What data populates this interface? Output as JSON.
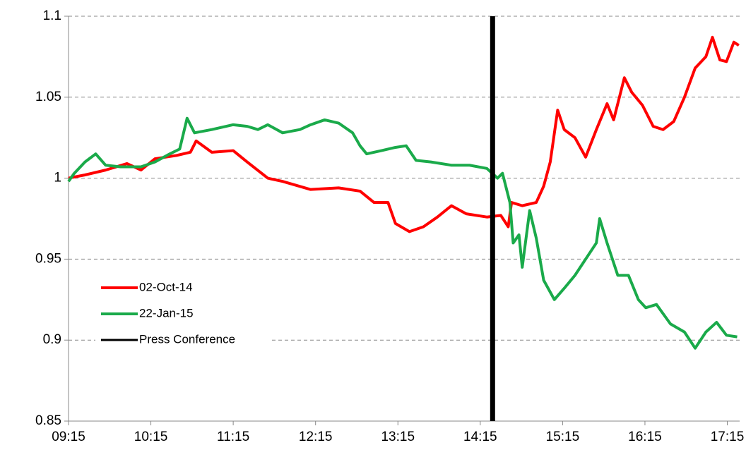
{
  "chart_data": {
    "type": "line",
    "xlim": [
      9.25,
      17.4
    ],
    "xticks": [
      {
        "value": 9.25,
        "label": "09:15"
      },
      {
        "value": 10.25,
        "label": "10:15"
      },
      {
        "value": 11.25,
        "label": "11:15"
      },
      {
        "value": 12.25,
        "label": "12:15"
      },
      {
        "value": 13.25,
        "label": "13:15"
      },
      {
        "value": 14.25,
        "label": "14:15"
      },
      {
        "value": 15.25,
        "label": "15:15"
      },
      {
        "value": 16.25,
        "label": "16:15"
      },
      {
        "value": 17.25,
        "label": "17:15"
      }
    ],
    "ylim": [
      0.85,
      1.1
    ],
    "yticks": [
      0.85,
      0.9,
      0.95,
      1,
      1.05,
      1.1
    ],
    "grid": true,
    "legend": "lower left",
    "series": [
      {
        "name": "02-Oct-14",
        "color": "#ff0000",
        "width": 4,
        "x": [
          9.25,
          9.45,
          9.7,
          9.96,
          10.13,
          10.3,
          10.56,
          10.73,
          10.8,
          10.99,
          11.25,
          11.42,
          11.67,
          11.85,
          12.19,
          12.53,
          12.79,
          12.96,
          13.13,
          13.22,
          13.39,
          13.56,
          13.73,
          13.9,
          14.08,
          14.33,
          14.5,
          14.59,
          14.63,
          14.76,
          14.93,
          15.02,
          15.1,
          15.19,
          15.27,
          15.4,
          15.53,
          15.66,
          15.79,
          15.87,
          16.0,
          16.09,
          16.22,
          16.35,
          16.47,
          16.6,
          16.73,
          16.86,
          16.99,
          17.07,
          17.16,
          17.24,
          17.33,
          17.39
        ],
        "values": [
          1.0,
          1.002,
          1.005,
          1.009,
          1.005,
          1.012,
          1.014,
          1.016,
          1.023,
          1.016,
          1.017,
          1.01,
          1.0,
          0.998,
          0.993,
          0.994,
          0.992,
          0.985,
          0.985,
          0.972,
          0.967,
          0.97,
          0.976,
          0.983,
          0.978,
          0.976,
          0.977,
          0.97,
          0.985,
          0.983,
          0.985,
          0.995,
          1.01,
          1.042,
          1.03,
          1.025,
          1.013,
          1.03,
          1.046,
          1.036,
          1.062,
          1.053,
          1.045,
          1.032,
          1.03,
          1.035,
          1.05,
          1.068,
          1.075,
          1.087,
          1.073,
          1.072,
          1.084,
          1.082
        ]
      },
      {
        "name": "22-Jan-15",
        "color": "#1aaa4a",
        "width": 4,
        "x": [
          9.25,
          9.32,
          9.45,
          9.58,
          9.7,
          9.88,
          10.13,
          10.3,
          10.48,
          10.6,
          10.69,
          10.78,
          10.99,
          11.25,
          11.42,
          11.55,
          11.67,
          11.85,
          12.06,
          12.19,
          12.36,
          12.53,
          12.7,
          12.79,
          12.87,
          13.05,
          13.22,
          13.35,
          13.47,
          13.65,
          13.9,
          14.12,
          14.33,
          14.46,
          14.52,
          14.61,
          14.65,
          14.72,
          14.76,
          14.85,
          14.93,
          15.02,
          15.15,
          15.27,
          15.4,
          15.53,
          15.66,
          15.7,
          15.79,
          15.92,
          16.05,
          16.17,
          16.26,
          16.39,
          16.56,
          16.73,
          16.86,
          16.99,
          17.12,
          17.24,
          17.37
        ],
        "values": [
          0.998,
          1.003,
          1.01,
          1.015,
          1.008,
          1.007,
          1.007,
          1.01,
          1.015,
          1.018,
          1.037,
          1.028,
          1.03,
          1.033,
          1.032,
          1.03,
          1.033,
          1.028,
          1.03,
          1.033,
          1.036,
          1.034,
          1.028,
          1.02,
          1.015,
          1.017,
          1.019,
          1.02,
          1.011,
          1.01,
          1.008,
          1.008,
          1.006,
          1.0,
          1.003,
          0.985,
          0.96,
          0.965,
          0.945,
          0.98,
          0.963,
          0.937,
          0.925,
          0.932,
          0.94,
          0.95,
          0.96,
          0.975,
          0.96,
          0.94,
          0.94,
          0.925,
          0.92,
          0.922,
          0.91,
          0.905,
          0.895,
          0.905,
          0.911,
          0.903,
          0.902
        ]
      },
      {
        "name": "Press Conference",
        "color": "#000000",
        "width": 7,
        "x": [
          14.4,
          14.4
        ],
        "values": [
          0.85,
          1.1
        ]
      }
    ]
  }
}
